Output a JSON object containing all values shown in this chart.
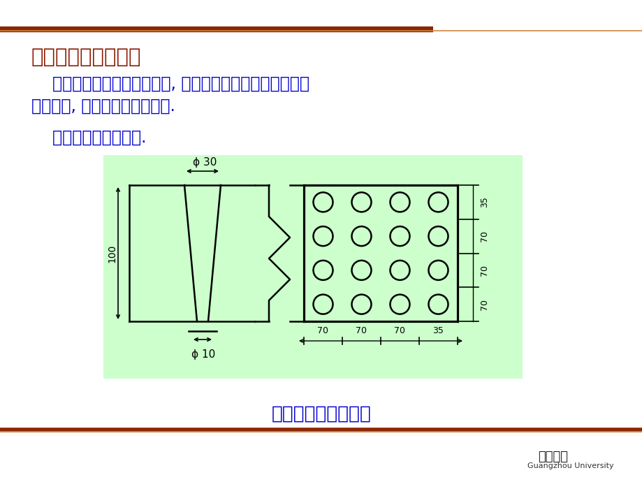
{
  "bg_color": "#FFFFFF",
  "title_text": "五、小阻力配水系统",
  "title_color": "#8B1A00",
  "title_fontsize": 21,
  "body_text1": "    常用的是钢筋混凝土穿孔板, 即在钢筋混凝土板上开园孔或",
  "body_text2": "条形缝隙, 板上铺设两层尼龙网.",
  "body_text3": "    也有用滤头或滤砖的.",
  "body_color": "#0000CC",
  "body_fontsize": 17,
  "caption_text": "钢筋混凝土穿孔滤板",
  "caption_color": "#0000CC",
  "caption_fontsize": 19,
  "diagram_bg": "#CCFFCC",
  "line_color": "#000000",
  "top_bar_color1": "#8B2500",
  "top_bar_color2": "#CD853F",
  "univ_text1": "广州大学",
  "univ_text2": "Guangzhou University"
}
